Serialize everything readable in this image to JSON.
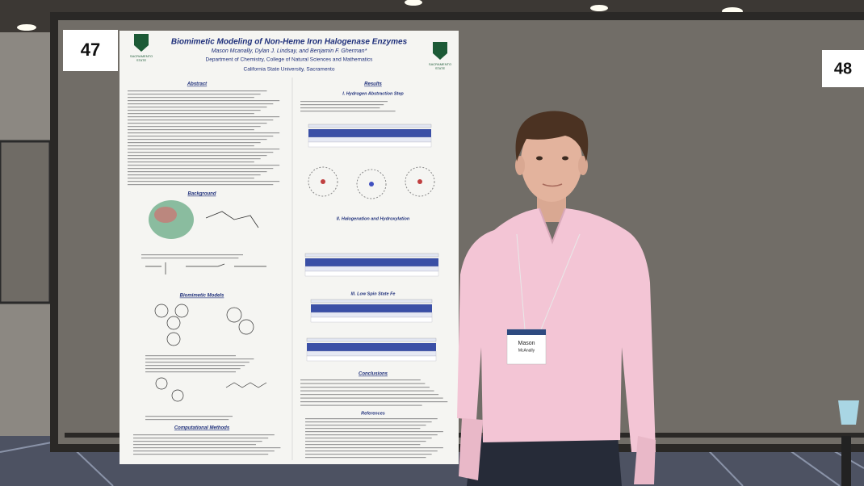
{
  "booths": {
    "left": "47",
    "right": "48"
  },
  "poster": {
    "title": "Biomimetic Modeling of Non-Heme Iron Halogenase Enzymes",
    "authors": "Mason Mcanally, Dylan J. Lindsay, and Benjamin F. Gherman*",
    "department": "Department of Chemistry, College of Natural Sciences and Mathematics",
    "university": "California State University, Sacramento",
    "logo": [
      "SACRAMENTO",
      "STATE"
    ],
    "sections": {
      "abstract": "Abstract",
      "background": "Background",
      "biomimetic_models": "Biomimetic Models",
      "computational_methods": "Computational Methods",
      "results": "Results",
      "hydrogen_abstraction": "I. Hydrogen Abstraction Step",
      "halogenation": "II. Halogenation and Hydroxylation",
      "low_spin": "III. Low Spin State Fe",
      "conclusions": "Conclusions",
      "references": "References"
    }
  },
  "badge": {
    "first_name": "Mason",
    "last_name": "McAnally"
  }
}
